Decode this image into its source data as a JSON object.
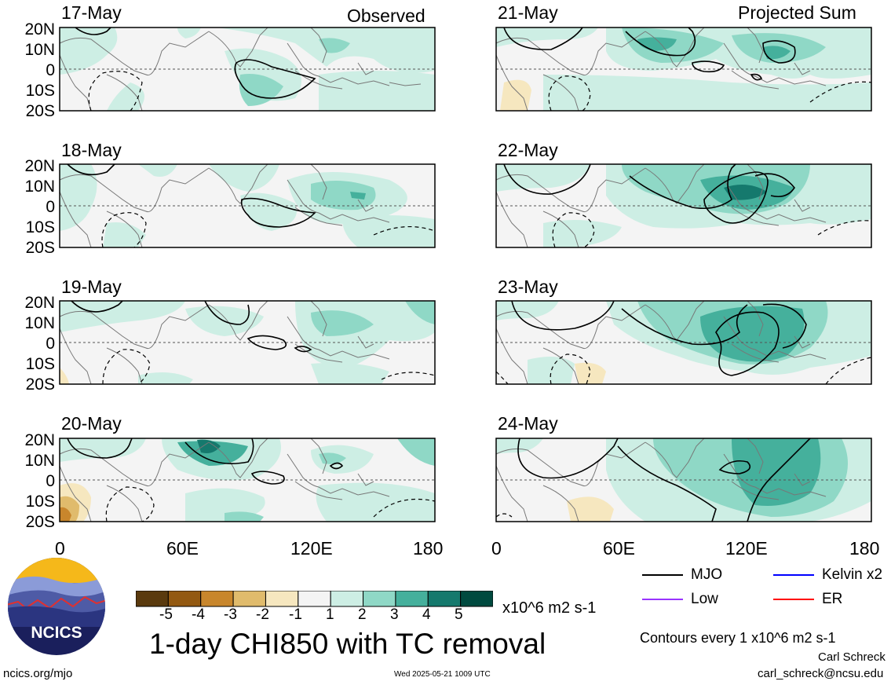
{
  "panel_titles": {
    "left": [
      "17-May",
      "18-May",
      "19-May",
      "20-May"
    ],
    "right": [
      "21-May",
      "22-May",
      "23-May",
      "24-May"
    ]
  },
  "corner_labels": {
    "observed": "Observed",
    "projected": "Projected Sum"
  },
  "lat_labels": [
    "20N",
    "10N",
    "0",
    "10S",
    "20S"
  ],
  "lon_labels": [
    "0",
    "60E",
    "120E",
    "180"
  ],
  "colorbar": {
    "ticks": [
      "-5",
      "-4",
      "-3",
      "-2",
      "-1",
      "1",
      "2",
      "3",
      "4",
      "5"
    ],
    "colors": [
      "#5a3a0e",
      "#935911",
      "#c8862c",
      "#e0bb6c",
      "#f6e7bf",
      "#f4f4f4",
      "#cdeee4",
      "#8fd8c6",
      "#45b09c",
      "#15796d",
      "#004a3f"
    ],
    "units": "x10^6 m2 s-1"
  },
  "title": "1-day CHI850 with TC removal",
  "legend": {
    "items": [
      {
        "label": "MJO",
        "color": "#000000"
      },
      {
        "label": "Kelvin x2",
        "color": "#0000ff"
      },
      {
        "label": "Low",
        "color": "#9933ff"
      },
      {
        "label": "ER",
        "color": "#ff0000"
      }
    ],
    "contour_note": "Contours every 1 x10^6 m2 s-1"
  },
  "footer": {
    "website": "ncics.org/mjo",
    "timestamp": "Wed 2025-05-21 1009 UTC",
    "author": "Carl Schreck",
    "email": "carl_schreck@ncsu.edu"
  },
  "logo_text": "NCICS"
}
